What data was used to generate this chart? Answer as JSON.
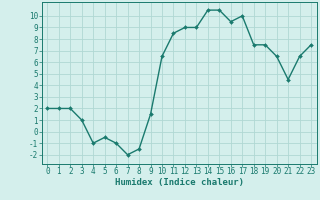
{
  "x": [
    0,
    1,
    2,
    3,
    4,
    5,
    6,
    7,
    8,
    9,
    10,
    11,
    12,
    13,
    14,
    15,
    16,
    17,
    18,
    19,
    20,
    21,
    22,
    23
  ],
  "y": [
    2.0,
    2.0,
    2.0,
    1.0,
    -1.0,
    -0.5,
    -1.0,
    -2.0,
    -1.5,
    1.5,
    6.5,
    8.5,
    9.0,
    9.0,
    10.5,
    10.5,
    9.5,
    10.0,
    7.5,
    7.5,
    6.5,
    4.5,
    6.5,
    7.5
  ],
  "line_color": "#1a7a6e",
  "marker": "D",
  "marker_size": 2.0,
  "linewidth": 1.0,
  "background_color": "#d4efec",
  "grid_color": "#b0d8d4",
  "xlabel": "Humidex (Indice chaleur)",
  "ylabel": "",
  "xlim": [
    -0.5,
    23.5
  ],
  "ylim": [
    -2.8,
    11.2
  ],
  "yticks": [
    -2,
    -1,
    0,
    1,
    2,
    3,
    4,
    5,
    6,
    7,
    8,
    9,
    10
  ],
  "xticks": [
    0,
    1,
    2,
    3,
    4,
    5,
    6,
    7,
    8,
    9,
    10,
    11,
    12,
    13,
    14,
    15,
    16,
    17,
    18,
    19,
    20,
    21,
    22,
    23
  ],
  "xlabel_fontsize": 6.5,
  "tick_fontsize": 5.5,
  "axis_color": "#1a7a6e"
}
